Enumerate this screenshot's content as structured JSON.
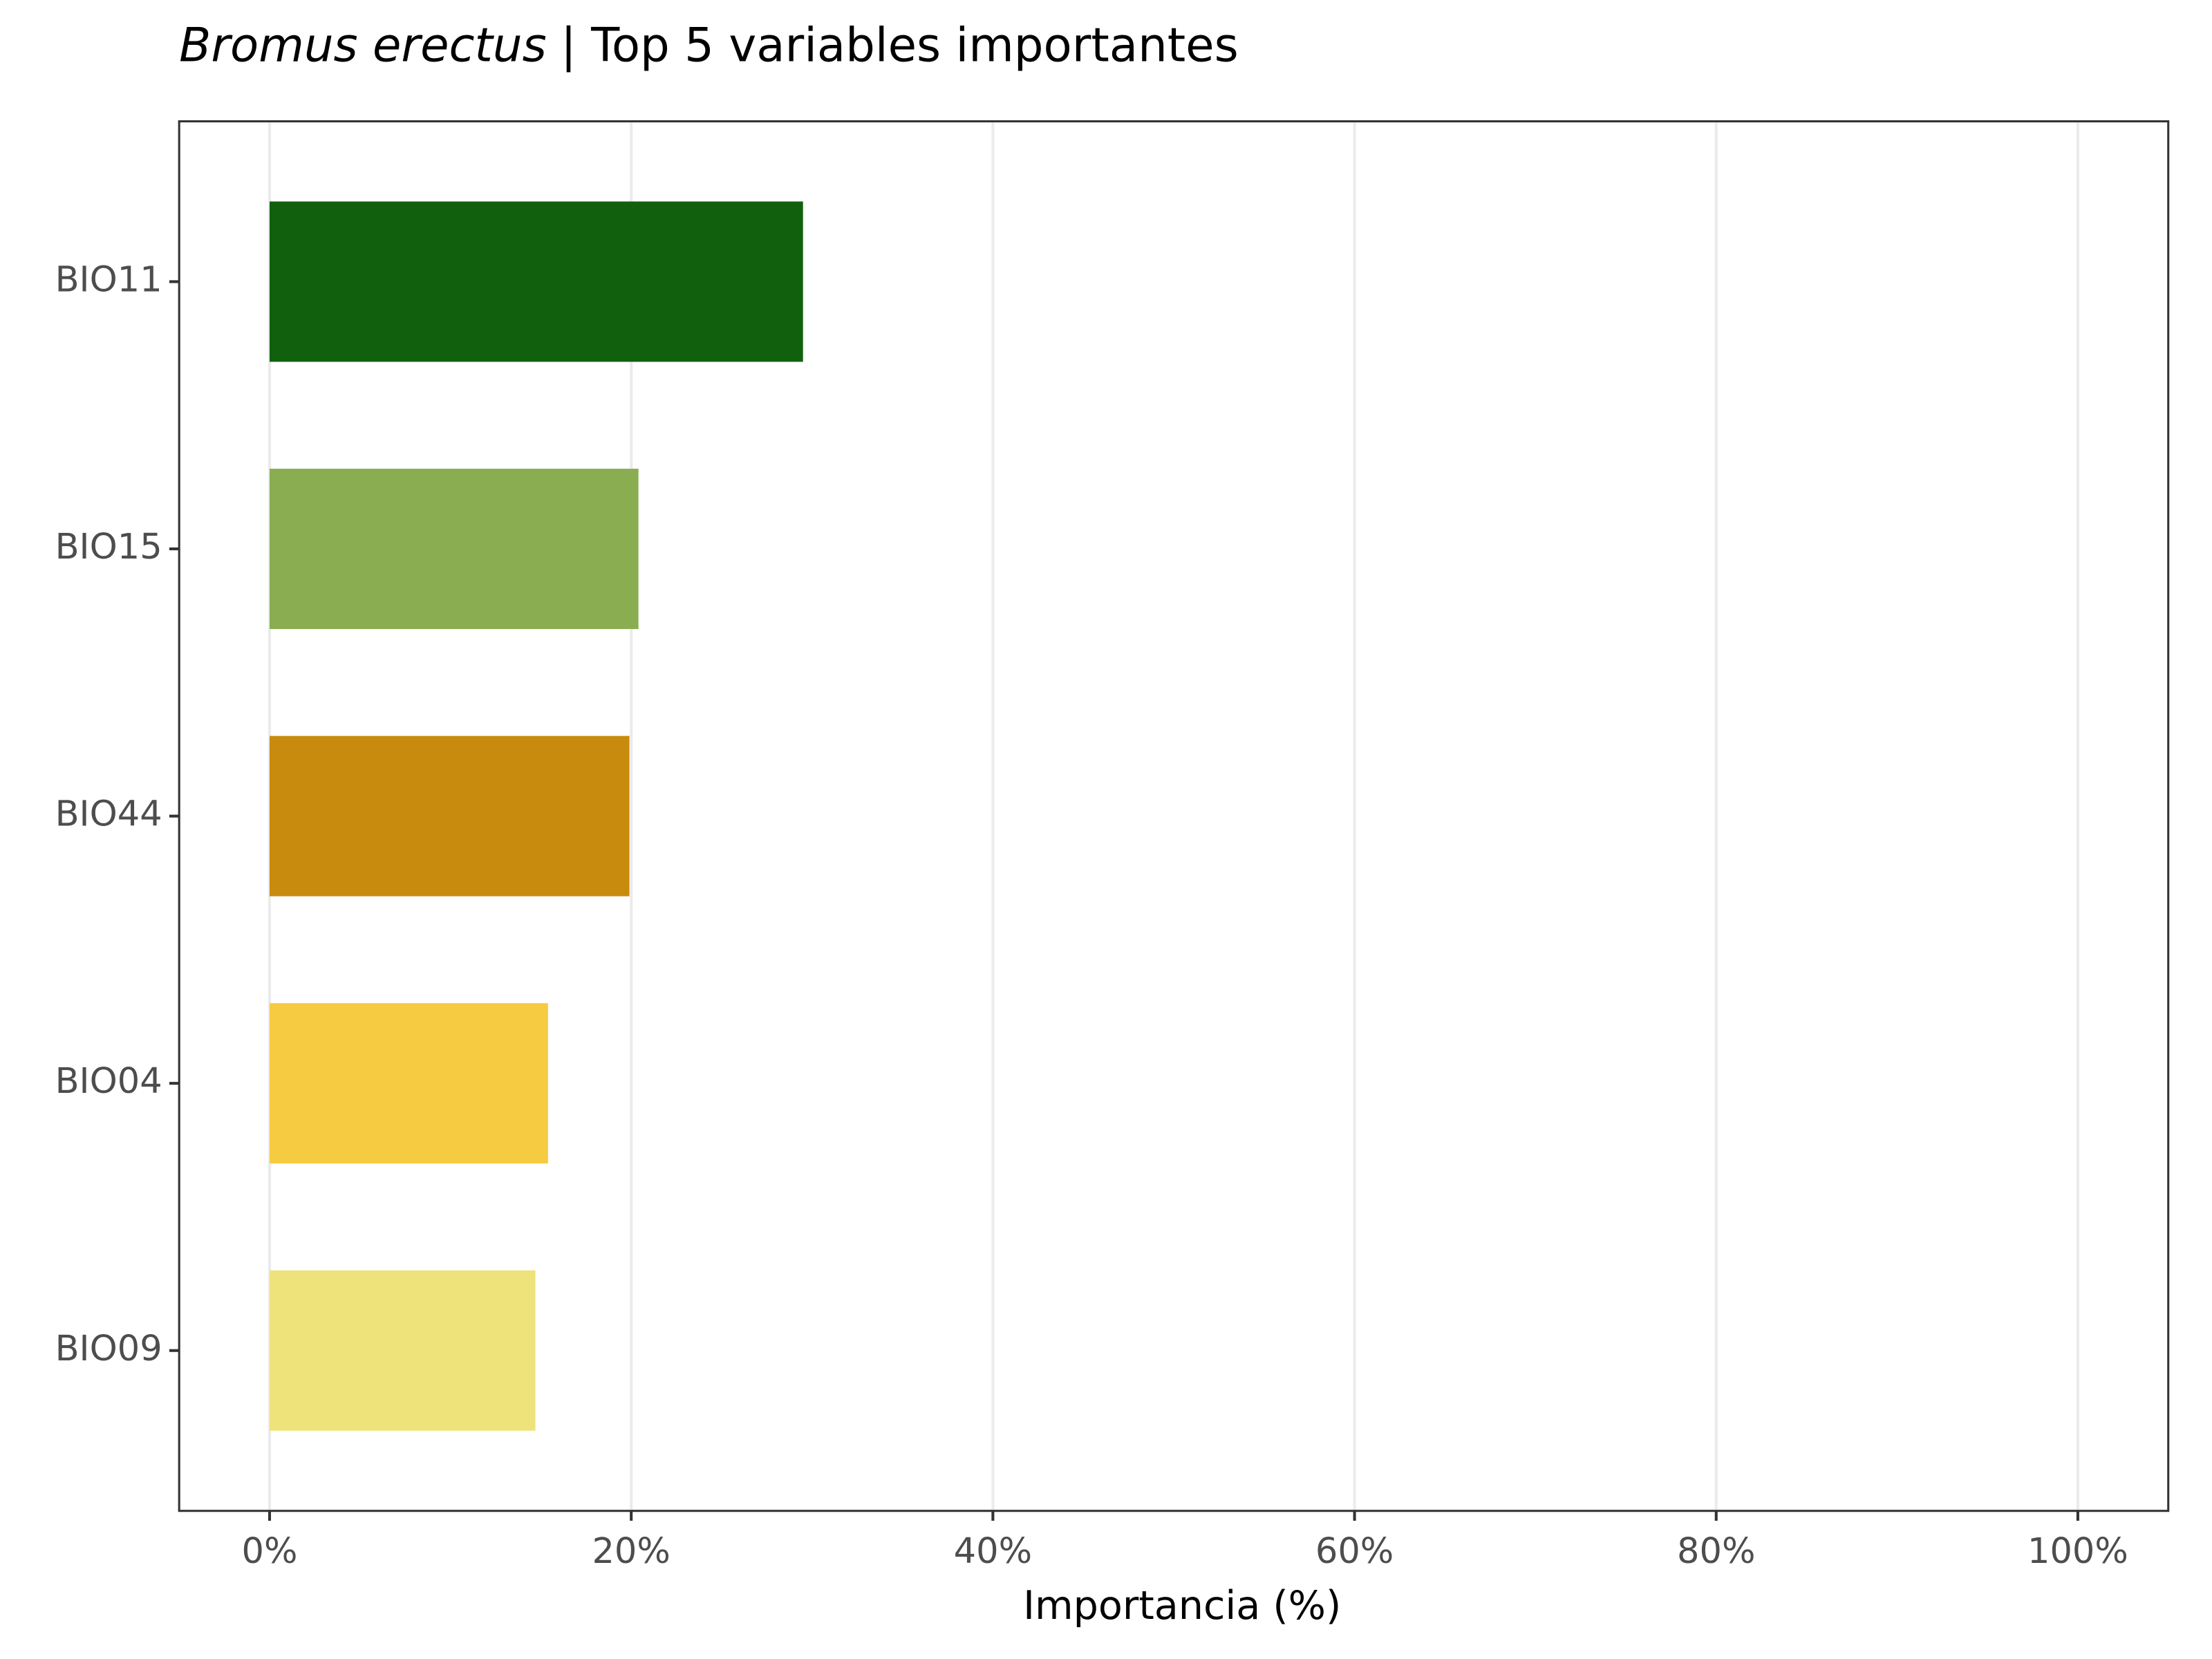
{
  "chart_data": {
    "type": "bar",
    "orientation": "horizontal",
    "title_italic": "Bromus erectus",
    "title": "| Top 5 variables importantes",
    "x_label": "Importancia (%)",
    "categories": [
      "BIO11",
      "BIO15",
      "BIO44",
      "BIO04",
      "BIO09"
    ],
    "values": [
      29.5,
      20.4,
      19.9,
      15.4,
      14.7
    ],
    "colors": [
      "#11600e",
      "#8aad52",
      "#c88b0e",
      "#f6cb41",
      "#eee27b"
    ],
    "xlim": [
      -5,
      105
    ],
    "xticks": [
      {
        "value": 0,
        "label": "0%"
      },
      {
        "value": 20,
        "label": "20%"
      },
      {
        "value": 40,
        "label": "40%"
      },
      {
        "value": 60,
        "label": "60%"
      },
      {
        "value": 80,
        "label": "80%"
      },
      {
        "value": 100,
        "label": "100%"
      }
    ],
    "grid": true
  }
}
